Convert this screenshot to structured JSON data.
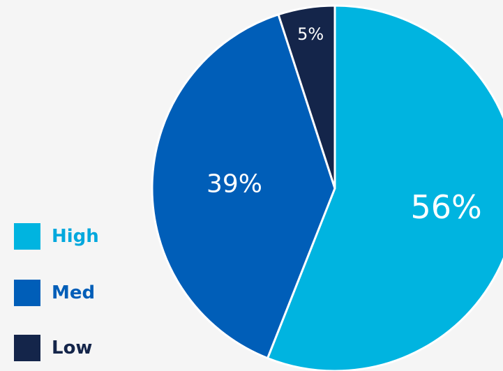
{
  "chart_data": {
    "type": "pie",
    "slices": [
      {
        "label": "High",
        "value": 56,
        "display": "56%",
        "color": "#00b4e0"
      },
      {
        "label": "Med",
        "value": 39,
        "display": "39%",
        "color": "#005eb8"
      },
      {
        "label": "Low",
        "value": 5,
        "display": "5%",
        "color": "#14254a"
      }
    ],
    "legend_position": "left"
  },
  "legend": {
    "items": [
      {
        "label": "High",
        "color": "#00b4e0",
        "text_color": "#00a8dd"
      },
      {
        "label": "Med",
        "color": "#005eb8",
        "text_color": "#005eb8"
      },
      {
        "label": "Low",
        "color": "#14254a",
        "text_color": "#14254a"
      }
    ]
  },
  "background": "#f5f5f5"
}
